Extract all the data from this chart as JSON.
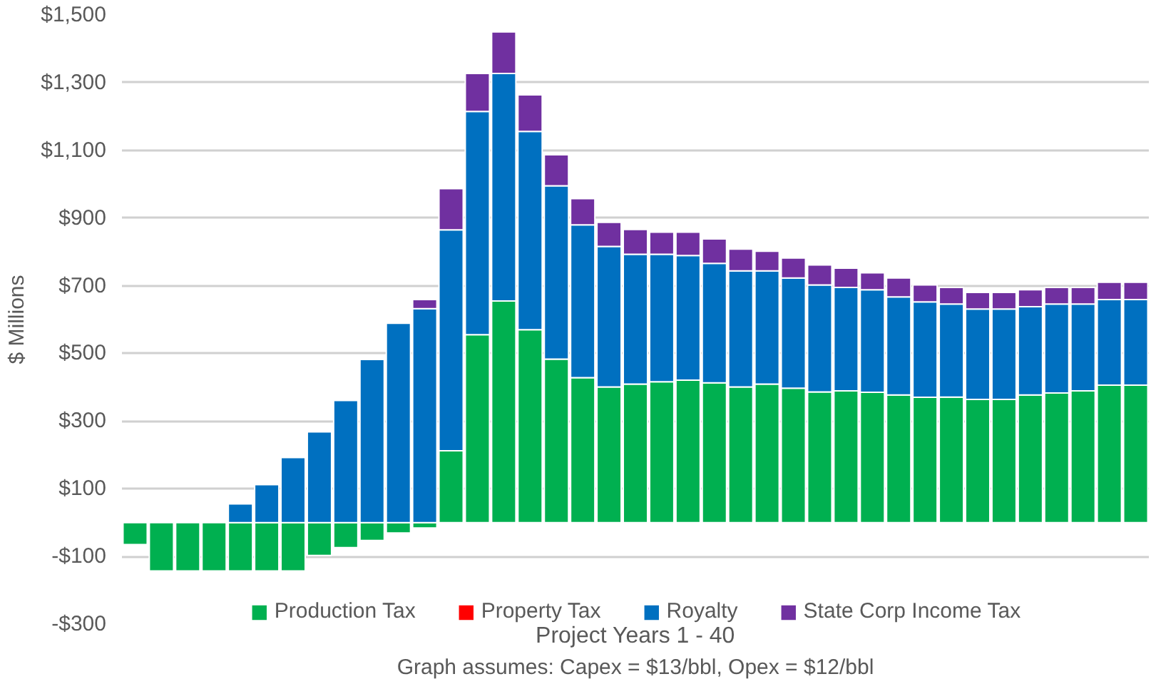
{
  "chart_data": {
    "type": "bar",
    "stacked": true,
    "categories": [
      null,
      null,
      null,
      null,
      null,
      null,
      null,
      null,
      null,
      null,
      null,
      null,
      null,
      null,
      null,
      null,
      null,
      null,
      null,
      null,
      null,
      null,
      null,
      null,
      null,
      null,
      null,
      null,
      null,
      null,
      null,
      null,
      null,
      null,
      null,
      null,
      null,
      null,
      null
    ],
    "xlabel": "Project Years 1 - 40",
    "ylabel": "$ Millions",
    "annotations": [
      "Graph assumes: Capex = $13/bbl, Opex = $12/bbl"
    ],
    "ylim": [
      -300,
      1500
    ],
    "yticks": [
      {
        "value": -300,
        "label": "-$300"
      },
      {
        "value": -100,
        "label": "-$100"
      },
      {
        "value": 100,
        "label": "$100"
      },
      {
        "value": 300,
        "label": "$300"
      },
      {
        "value": 500,
        "label": "$500"
      },
      {
        "value": 700,
        "label": "$700"
      },
      {
        "value": 900,
        "label": "$900"
      },
      {
        "value": 1100,
        "label": "$1,100"
      },
      {
        "value": 1300,
        "label": "$1,300"
      },
      {
        "value": 1500,
        "label": "$1,500"
      }
    ],
    "grid": "y",
    "legend": "bottom",
    "tick_labels": "y",
    "series": [
      {
        "name": "Production Tax",
        "color": "#00b050",
        "values": [
          -65,
          -143,
          -143,
          -143,
          -143,
          -143,
          -143,
          -97,
          -74,
          -53,
          -31,
          -16,
          212,
          555,
          655,
          570,
          483,
          428,
          401,
          409,
          416,
          421,
          413,
          401,
          409,
          397,
          386,
          389,
          385,
          377,
          370,
          371,
          364,
          364,
          377,
          383,
          389,
          406,
          406
        ]
      },
      {
        "name": "Property Tax",
        "color": "#ff0000",
        "values": [
          null,
          null,
          null,
          null,
          null,
          null,
          null,
          null,
          null,
          null,
          null,
          null,
          null,
          null,
          null,
          null,
          null,
          null,
          null,
          null,
          null,
          null,
          null,
          null,
          null,
          null,
          null,
          null,
          null,
          null,
          null,
          null,
          null,
          null,
          null,
          null,
          null,
          null,
          null
        ]
      },
      {
        "name": "Royalty",
        "color": "#0070c0",
        "values": [
          null,
          null,
          null,
          null,
          55,
          112,
          192,
          268,
          361,
          482,
          589,
          632,
          653,
          660,
          672,
          586,
          512,
          452,
          415,
          384,
          377,
          368,
          353,
          343,
          335,
          326,
          316,
          306,
          303,
          290,
          282,
          275,
          267,
          267,
          261,
          263,
          257,
          253,
          253
        ]
      },
      {
        "name": "State Corp Income Tax",
        "color": "#7030a0",
        "values": [
          null,
          null,
          null,
          null,
          null,
          null,
          null,
          null,
          null,
          null,
          null,
          27,
          122,
          112,
          123,
          108,
          92,
          77,
          71,
          73,
          65,
          69,
          72,
          64,
          58,
          59,
          59,
          57,
          50,
          56,
          50,
          49,
          49,
          49,
          50,
          49,
          49,
          51,
          51
        ]
      }
    ]
  }
}
